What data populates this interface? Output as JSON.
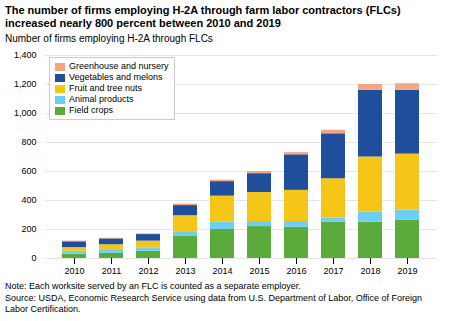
{
  "chart_data": {
    "type": "bar",
    "title": "The number of firms employing H-2A through farm labor contractors (FLCs) increased nearly 800 percent between 2010 and 2019",
    "ylabel": "Number of firms employing H-2A through FLCs",
    "annotations": [
      "Note: Each worksite served by an FLC is counted as a separate employer.",
      "Source: USDA, Economic Research Service using data from U.S. Department of Labor, Office of Foreign Labor Certification."
    ],
    "categories": [
      "2010",
      "2011",
      "2012",
      "2013",
      "2014",
      "2015",
      "2016",
      "2017",
      "2018",
      "2019"
    ],
    "series": [
      {
        "name": "Field crops",
        "color": "#5aaa3c",
        "values": [
          30,
          35,
          50,
          155,
          200,
          220,
          215,
          250,
          250,
          265
        ]
      },
      {
        "name": "Animal products",
        "color": "#6ecff6",
        "values": [
          20,
          20,
          20,
          30,
          50,
          35,
          40,
          30,
          70,
          70
        ]
      },
      {
        "name": "Fruit and tree nuts",
        "color": "#f5c518",
        "values": [
          25,
          40,
          50,
          110,
          180,
          200,
          215,
          270,
          380,
          385
        ]
      },
      {
        "name": "Vegetables and melons",
        "color": "#1f4e9c",
        "values": [
          40,
          40,
          45,
          70,
          100,
          130,
          245,
          310,
          460,
          440
        ]
      },
      {
        "name": "Greenhouse and nursery",
        "color": "#f4a582",
        "values": [
          5,
          5,
          5,
          10,
          10,
          15,
          15,
          25,
          40,
          45
        ]
      }
    ],
    "stacked": true,
    "ylim": [
      0,
      1400
    ],
    "yticks": [
      0,
      200,
      400,
      600,
      800,
      {
        "value": 1000,
        "label": "1,000"
      },
      {
        "value": 1200,
        "label": "1,200"
      },
      {
        "value": 1400,
        "label": "1,400"
      }
    ],
    "grid": true,
    "legend": "upper left"
  }
}
